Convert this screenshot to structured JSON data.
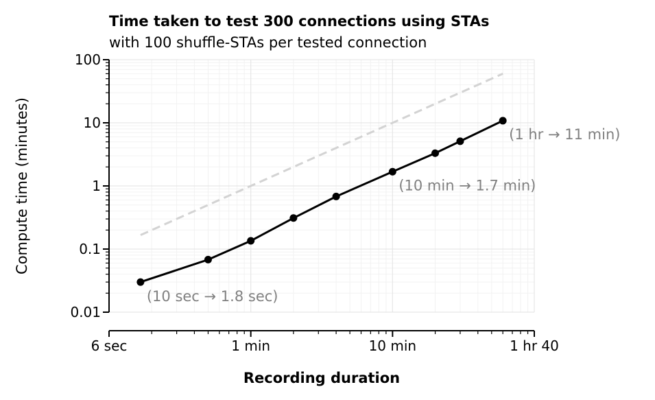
{
  "chart_data": {
    "type": "line",
    "title": "Time taken to test 300 connections using STAs",
    "subtitle": "with 100 shuffle-STAs per tested connection",
    "xlabel": "Recording duration",
    "ylabel": "Compute time (minutes)",
    "x_scale": "log",
    "y_scale": "log",
    "x_unit": "minutes",
    "xlim": [
      0.1,
      100
    ],
    "ylim": [
      0.01,
      100
    ],
    "x_ticks": [
      {
        "value": 0.1,
        "label": "6 sec"
      },
      {
        "value": 1,
        "label": "1 min"
      },
      {
        "value": 10,
        "label": "10 min"
      },
      {
        "value": 100,
        "label": "1 hr 40"
      }
    ],
    "y_ticks": [
      {
        "value": 0.01,
        "label": "0.01"
      },
      {
        "value": 0.1,
        "label": "0.1"
      },
      {
        "value": 1,
        "label": "1"
      },
      {
        "value": 10,
        "label": "10"
      },
      {
        "value": 100,
        "label": "100"
      }
    ],
    "grid": true,
    "series": [
      {
        "x": [
          0.1667,
          0.5,
          1,
          2,
          4,
          10,
          20,
          30,
          60
        ],
        "y": [
          0.03,
          0.068,
          0.135,
          0.31,
          0.68,
          1.68,
          3.3,
          5.1,
          10.8
        ],
        "color": "#000000",
        "style": "solid",
        "markers": true
      },
      {
        "x": [
          0.1667,
          60
        ],
        "y": [
          0.1667,
          60
        ],
        "color": "#d3d3d3",
        "style": "dashed",
        "markers": false
      }
    ],
    "annotations": [
      {
        "text": "(10 sec → 1.8 sec)",
        "x": 0.1667,
        "y": 0.03
      },
      {
        "text": "(10 min → 1.7 min)",
        "x": 10,
        "y": 1.68
      },
      {
        "text": "(1 hr → 11 min)",
        "x": 60,
        "y": 10.8
      }
    ],
    "annotation_color": "#808080"
  }
}
